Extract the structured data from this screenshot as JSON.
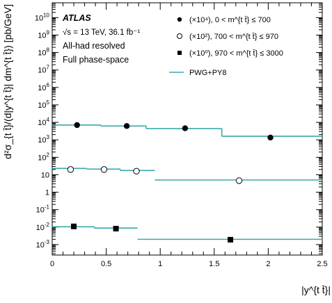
{
  "chart_data": {
    "type": "scatter",
    "title": "",
    "xlabel": "|y^{t t̄}|",
    "ylabel": "d²σ_{t t̄}/(d|y^{t t̄}| dm^{t t̄}) [pb/GeV]",
    "xlim": [
      0,
      2.5
    ],
    "ylim_log10": [
      -3.6,
      10.85
    ],
    "yscale": "log",
    "x_ticks": [
      "0",
      "0.5",
      "1",
      "1.5",
      "2",
      "2.5"
    ],
    "annotations": {
      "experiment": "ATLAS",
      "energy_lumi": "√s = 13 TeV, 36.1 fb⁻¹",
      "channel": "All-had resolved",
      "phase_space": "Full phase-space"
    },
    "legend_position": "top-right",
    "model_line": {
      "name": "PWG+PY8",
      "color": "#3aa8a8"
    },
    "series": [
      {
        "name": "(×10⁴), 0 < m^{t t̄} ≤ 700",
        "marker": "filled-circle",
        "x": [
          0.23,
          0.69,
          1.23,
          2.02
        ],
        "y": [
          7000.0,
          6200.0,
          4600.0,
          1350.0
        ],
        "model_bins": [
          [
            0,
            0.45,
            7000.0
          ],
          [
            0.45,
            0.87,
            6200.0
          ],
          [
            0.87,
            1.57,
            4400.0
          ],
          [
            1.57,
            2.5,
            1600.0
          ]
        ]
      },
      {
        "name": "(×10²), 700 < m^{t t̄} ≤ 970",
        "marker": "open-circle",
        "x": [
          0.17,
          0.48,
          0.78,
          1.73
        ],
        "y": [
          20,
          20,
          16,
          4.6
        ],
        "model_bins": [
          [
            0,
            0.32,
            23
          ],
          [
            0.32,
            0.63,
            21
          ],
          [
            0.63,
            0.95,
            17.5
          ],
          [
            0.95,
            2.5,
            5.0
          ]
        ]
      },
      {
        "name": "(×10⁰), 970 < m^{t t̄} ≤ 3000",
        "marker": "filled-square",
        "x": [
          0.2,
          0.59,
          1.65
        ],
        "y": [
          0.011,
          0.0082,
          0.0019
        ],
        "model_bins": [
          [
            0,
            0.39,
            0.0105
          ],
          [
            0.39,
            0.79,
            0.0088
          ],
          [
            0.79,
            2.5,
            0.002
          ]
        ]
      }
    ]
  }
}
